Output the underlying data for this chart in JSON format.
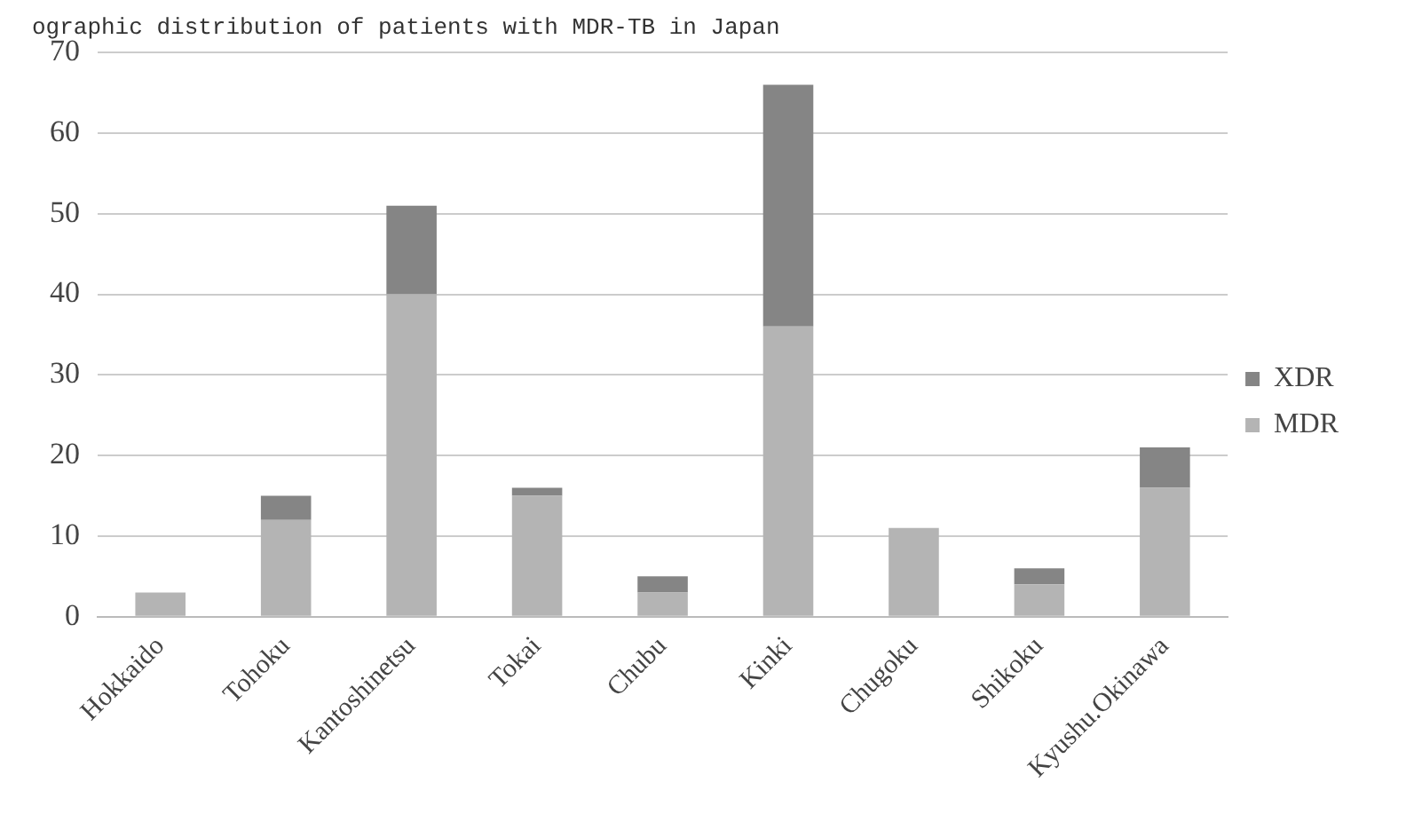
{
  "chart_data": {
    "type": "bar",
    "title": "ographic distribution of patients with MDR-TB in Japan",
    "categories": [
      "Hokkaido",
      "Tohoku",
      "Kantoshinetsu",
      "Tokai",
      "Chubu",
      "Kinki",
      "Chugoku",
      "Shikoku",
      "Kyushu.Okinawa"
    ],
    "stacked": true,
    "series": [
      {
        "name": "MDR",
        "color": "#b4b4b4",
        "values": [
          3,
          12,
          40,
          15,
          3,
          36,
          11,
          4,
          16
        ]
      },
      {
        "name": "XDR",
        "color": "#858585",
        "values": [
          0,
          3,
          11,
          1,
          2,
          30,
          0,
          2,
          5
        ]
      }
    ],
    "ylim": [
      0,
      70
    ],
    "yticks": [
      0,
      10,
      20,
      30,
      40,
      50,
      60,
      70
    ],
    "grid": "y",
    "legend": "right"
  }
}
